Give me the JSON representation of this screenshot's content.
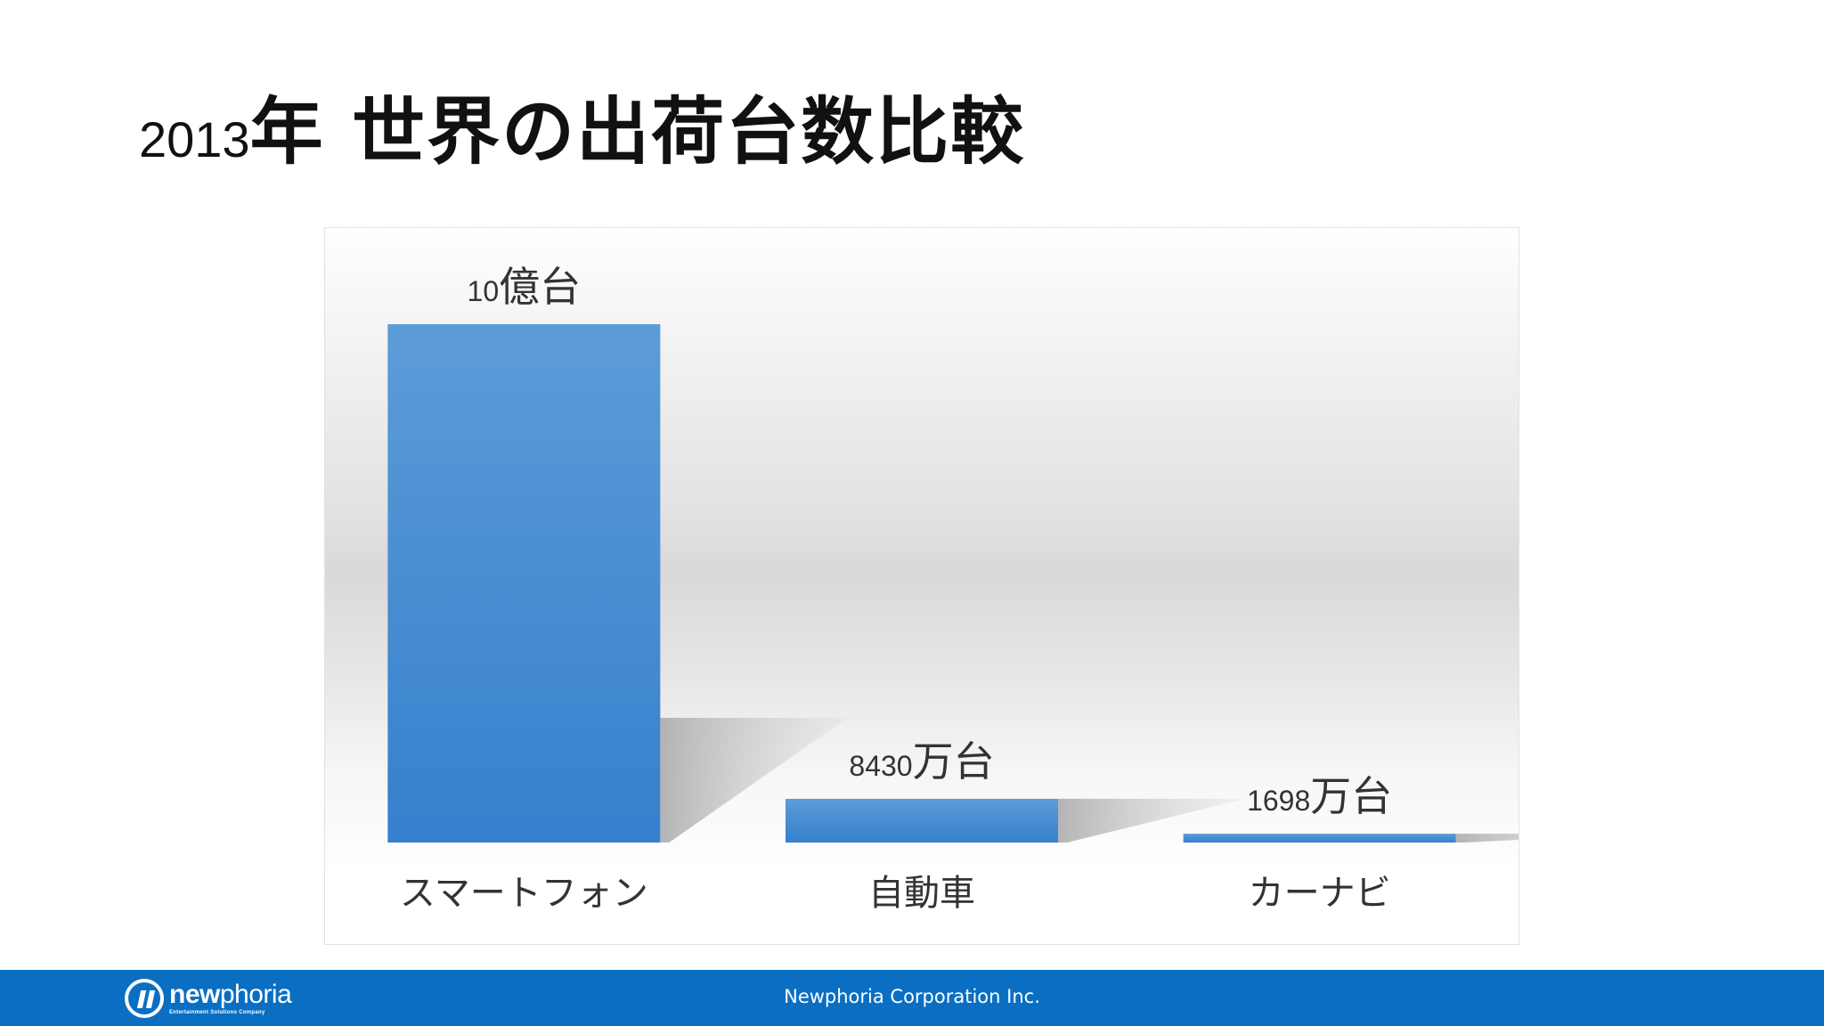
{
  "slide": {
    "title_year": "2013",
    "title_text": "年 世界の出荷台数比較"
  },
  "chart_data": {
    "type": "bar",
    "title": "",
    "categories": [
      "スマートフォン",
      "自動車",
      "カーナビ"
    ],
    "values": [
      100000,
      8430,
      1698
    ],
    "value_unit": "万台",
    "data_labels": [
      {
        "number": "10",
        "unit": "億台"
      },
      {
        "number": "8430",
        "unit": "万台"
      },
      {
        "number": "1698",
        "unit": "万台"
      }
    ],
    "xlabel": "",
    "ylabel": "",
    "ylim": [
      0,
      100000
    ],
    "grid": false,
    "legend": "none",
    "bar_color": "#3a86d0"
  },
  "footer": {
    "logo_name": "newphoria",
    "logo_bold": "new",
    "logo_light": "phoria",
    "logo_tagline": "Entertainment Solutions Company",
    "company": "Newphoria Corporation Inc.",
    "background_color": "#0a6fc2"
  }
}
